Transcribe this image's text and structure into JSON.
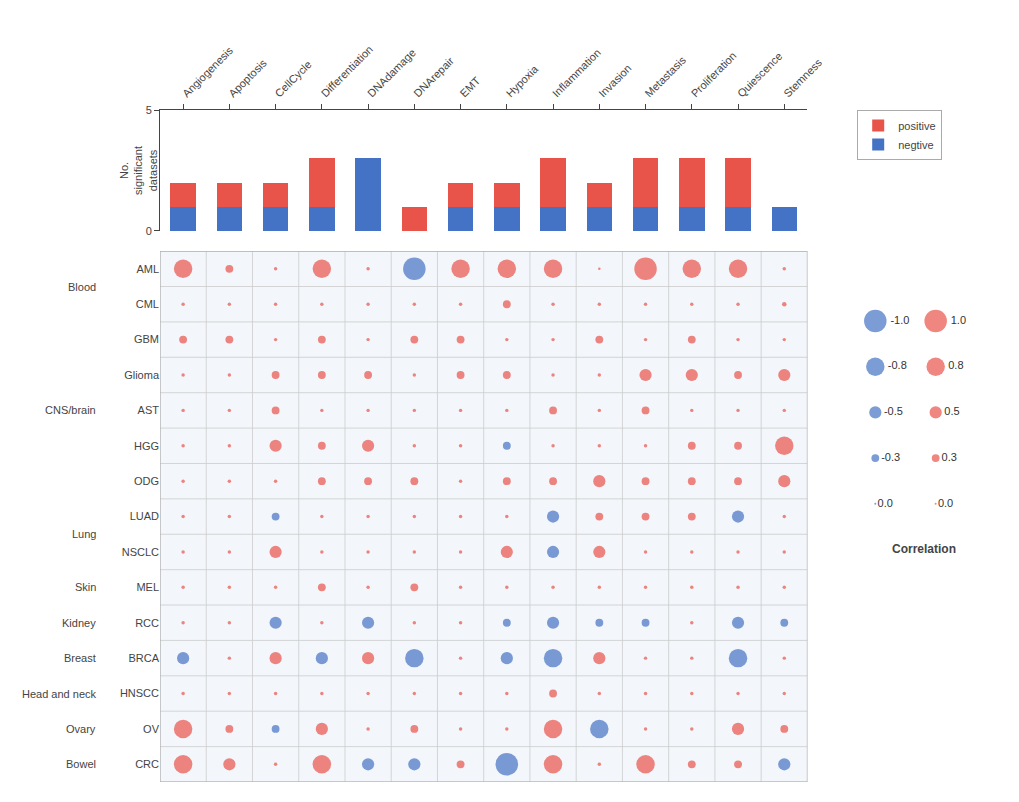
{
  "chart_data": [
    {
      "type": "bar",
      "stacked": true,
      "categories": [
        "Angiogenesis",
        "Apoptosis",
        "CellCycle",
        "Differentiation",
        "DNAdamage",
        "DNArepair",
        "EMT",
        "Hypoxia",
        "Inflammation",
        "Invasion",
        "Metastasis",
        "Proliferation",
        "Quiescence",
        "Stemness"
      ],
      "series": [
        {
          "name": "negtive",
          "color": "#4472c4",
          "values": [
            1,
            1,
            1,
            1,
            3,
            0,
            1,
            1,
            1,
            1,
            1,
            1,
            1,
            1
          ]
        },
        {
          "name": "positive",
          "color": "#e8534a",
          "values": [
            1,
            1,
            1,
            2,
            0,
            1,
            1,
            1,
            2,
            1,
            2,
            2,
            2,
            0
          ]
        }
      ],
      "ylabel": "No.\nsignificant\ndatasets",
      "ylim": [
        0,
        5
      ],
      "yticks": [
        0,
        5
      ],
      "grid": false,
      "legend": "upper right"
    },
    {
      "type": "dot_matrix",
      "categories": [
        "Angiogenesis",
        "Apoptosis",
        "CellCycle",
        "Differentiation",
        "DNAdamage",
        "DNArepair",
        "EMT",
        "Hypoxia",
        "Inflammation",
        "Invasion",
        "Metastasis",
        "Proliferation",
        "Quiescence",
        "Stemness"
      ],
      "rows": [
        "AML",
        "CML",
        "GBM",
        "Glioma",
        "AST",
        "HGG",
        "ODG",
        "LUAD",
        "NSCLC",
        "MEL",
        "RCC",
        "BRCA",
        "HNSCC",
        "OV",
        "CRC"
      ],
      "groups": [
        {
          "name": "Blood",
          "rows": [
            "AML",
            "CML"
          ]
        },
        {
          "name": "CNS/brain",
          "rows": [
            "GBM",
            "Glioma",
            "AST",
            "HGG",
            "ODG"
          ]
        },
        {
          "name": "Lung",
          "rows": [
            "LUAD",
            "NSCLC"
          ]
        },
        {
          "name": "Skin",
          "rows": [
            "MEL"
          ]
        },
        {
          "name": "Kidney",
          "rows": [
            "RCC"
          ]
        },
        {
          "name": "Breast",
          "rows": [
            "BRCA"
          ]
        },
        {
          "name": "Head and neck",
          "rows": [
            "HNSCC"
          ]
        },
        {
          "name": "Ovary",
          "rows": [
            "OV"
          ]
        },
        {
          "name": "Bowel",
          "rows": [
            "CRC"
          ]
        }
      ],
      "values": [
        [
          0.8,
          0.3,
          0.1,
          0.8,
          0.1,
          -1.0,
          0.8,
          0.8,
          0.8,
          0.05,
          1.0,
          0.8,
          0.8,
          0.1
        ],
        [
          0.1,
          0.1,
          0.1,
          0.1,
          0.1,
          0.1,
          0.1,
          0.3,
          0.1,
          0.1,
          0.1,
          0.1,
          0.1,
          0.15
        ],
        [
          0.3,
          0.3,
          0.1,
          0.3,
          0.1,
          0.3,
          0.3,
          0.1,
          0.1,
          0.3,
          0.1,
          0.3,
          0.1,
          0.1
        ],
        [
          0.1,
          0.1,
          0.3,
          0.3,
          0.3,
          0.1,
          0.3,
          0.3,
          0.1,
          0.1,
          0.5,
          0.5,
          0.3,
          0.5
        ],
        [
          0.1,
          0.1,
          0.3,
          0.1,
          0.1,
          0.1,
          0.1,
          0.1,
          0.3,
          0.1,
          0.3,
          0.1,
          0.1,
          0.1
        ],
        [
          0.1,
          0.1,
          0.5,
          0.3,
          0.5,
          0.1,
          0.1,
          -0.3,
          0.1,
          0.1,
          0.1,
          0.3,
          0.3,
          0.8
        ],
        [
          0.1,
          0.1,
          0.1,
          0.3,
          0.3,
          0.3,
          0.1,
          0.3,
          0.3,
          0.5,
          0.3,
          0.3,
          0.3,
          0.5
        ],
        [
          0.1,
          0.1,
          -0.3,
          0.1,
          0.1,
          0.1,
          0.1,
          0.1,
          -0.5,
          0.3,
          0.3,
          0.3,
          -0.5,
          0.1
        ],
        [
          0.1,
          0.1,
          0.5,
          0.1,
          0.1,
          0.1,
          0.1,
          0.5,
          -0.5,
          0.5,
          0.1,
          0.1,
          0.1,
          0.1
        ],
        [
          0.1,
          0.1,
          0.1,
          0.3,
          0.1,
          0.3,
          0.1,
          0.1,
          0.1,
          0.1,
          0.1,
          0.1,
          0.1,
          0.1
        ],
        [
          0.1,
          0.1,
          -0.5,
          0.1,
          -0.5,
          0.1,
          0.1,
          -0.3,
          -0.5,
          -0.3,
          -0.3,
          0.1,
          -0.5,
          -0.3
        ],
        [
          -0.5,
          0.1,
          0.5,
          -0.5,
          0.5,
          -0.8,
          0.1,
          -0.5,
          -0.8,
          0.5,
          0.1,
          0.1,
          -0.8,
          0.1
        ],
        [
          0.1,
          0.1,
          0.1,
          0.1,
          0.1,
          0.1,
          0.1,
          0.1,
          0.3,
          0.1,
          0.1,
          0.1,
          0.1,
          0.1
        ],
        [
          0.8,
          0.3,
          -0.3,
          0.5,
          0.1,
          0.3,
          0.1,
          0.1,
          0.8,
          -0.8,
          0.1,
          0.1,
          0.5,
          0.3
        ],
        [
          0.8,
          0.5,
          0.1,
          0.8,
          -0.5,
          -0.5,
          0.3,
          -1.0,
          0.8,
          0.1,
          0.8,
          0.3,
          0.3,
          -0.5
        ]
      ],
      "colors": {
        "positive": "#e8534a",
        "negative": "#4472c4"
      },
      "grid": true,
      "tick_labels": "y",
      "size_legend": {
        "title": "Correlation",
        "columns": [
          {
            "color": "#4472c4",
            "entries": [
              {
                "value": -1.0,
                "label": "-1.0"
              },
              {
                "value": -0.8,
                "label": "-0.8"
              },
              {
                "value": -0.5,
                "label": "-0.5"
              },
              {
                "value": -0.3,
                "label": "-0.3"
              },
              {
                "value": 0,
                "label": "0.0"
              }
            ]
          },
          {
            "color": "#e8534a",
            "entries": [
              {
                "value": 1.0,
                "label": "1.0"
              },
              {
                "value": 0.8,
                "label": "0.8"
              },
              {
                "value": 0.5,
                "label": "0.5"
              },
              {
                "value": 0.3,
                "label": "0.3"
              },
              {
                "value": 0,
                "label": "0.0"
              }
            ]
          }
        ]
      }
    }
  ]
}
